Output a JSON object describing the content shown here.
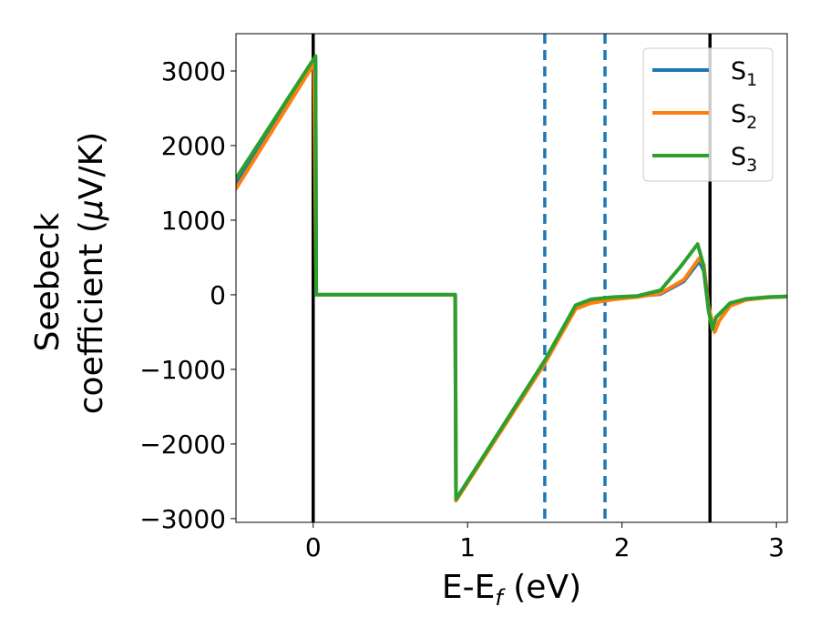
{
  "chart_data": {
    "type": "line",
    "xlabel": {
      "main": "E-E",
      "sub": "f",
      "tail": " (eV)"
    },
    "ylabel": {
      "line1": "Seebeck",
      "line2_pre": "coefficient  (",
      "line2_mu": "μ",
      "line2_post": "V/K)"
    },
    "xlim": [
      -0.5,
      3.07
    ],
    "ylim": [
      -3050,
      3500
    ],
    "xticks": [
      0,
      1,
      2,
      3
    ],
    "xtick_labels": [
      "0",
      "1",
      "2",
      "3"
    ],
    "yticks": [
      3000,
      2000,
      1000,
      0,
      -1000,
      -2000,
      -3000
    ],
    "ytick_labels": [
      "3000",
      "2000",
      "1000",
      "0",
      "−1000",
      "−2000",
      "−3000"
    ],
    "grid": false,
    "legend_position": "top-right",
    "vlines": [
      {
        "x": 0,
        "style": "solid",
        "color": "#000000"
      },
      {
        "x": 2.57,
        "style": "solid",
        "color": "#000000"
      },
      {
        "x": 1.5,
        "style": "dashed",
        "color": "#1f77b4"
      },
      {
        "x": 1.89,
        "style": "dashed",
        "color": "#1f77b4"
      }
    ],
    "series": [
      {
        "name": "S",
        "sub": "1",
        "color": "#1f77b4",
        "x": [
          -0.5,
          0.01,
          0.015,
          0.02,
          0.92,
          0.925,
          1.5,
          1.7,
          1.8,
          1.95,
          2.1,
          2.25,
          2.4,
          2.5,
          2.53,
          2.56,
          2.585,
          2.61,
          2.7,
          2.8,
          2.95,
          3.07
        ],
        "y": [
          1480,
          3120,
          3150,
          0,
          0,
          -2740,
          -900,
          -150,
          -70,
          -40,
          -20,
          10,
          180,
          450,
          320,
          -200,
          -450,
          -300,
          -120,
          -60,
          -35,
          -25
        ]
      },
      {
        "name": "S",
        "sub": "2",
        "color": "#ff7f0e",
        "x": [
          -0.5,
          0.0,
          0.005,
          0.02,
          0.92,
          0.925,
          1.5,
          1.7,
          1.8,
          1.95,
          2.1,
          2.25,
          2.4,
          2.5,
          2.53,
          2.56,
          2.6,
          2.63,
          2.7,
          2.8,
          2.95,
          3.07
        ],
        "y": [
          1420,
          3080,
          3100,
          0,
          0,
          -2760,
          -920,
          -190,
          -110,
          -60,
          -30,
          20,
          200,
          490,
          400,
          -150,
          -500,
          -350,
          -150,
          -70,
          -35,
          -25
        ]
      },
      {
        "name": "S",
        "sub": "3",
        "color": "#2ca02c",
        "x": [
          -0.5,
          0.0,
          0.015,
          0.02,
          0.92,
          0.925,
          1.5,
          1.7,
          1.8,
          1.95,
          2.1,
          2.25,
          2.38,
          2.49,
          2.525,
          2.56,
          2.585,
          2.61,
          2.7,
          2.8,
          2.95,
          3.07
        ],
        "y": [
          1560,
          3150,
          3200,
          0,
          0,
          -2740,
          -880,
          -140,
          -60,
          -30,
          -15,
          60,
          380,
          680,
          420,
          -200,
          -460,
          -300,
          -110,
          -55,
          -30,
          -20
        ]
      }
    ]
  }
}
